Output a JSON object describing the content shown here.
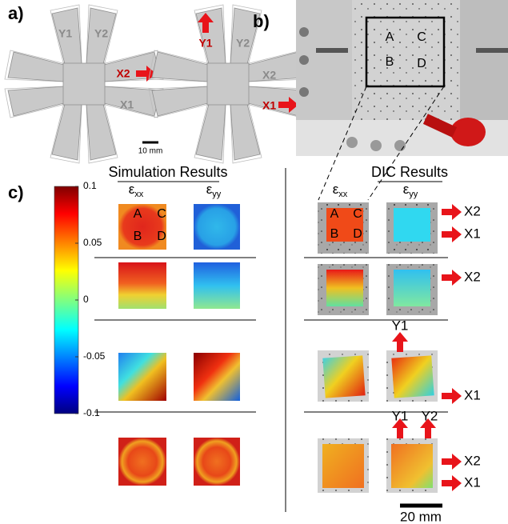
{
  "panel_a": {
    "label": "a)",
    "specimen_1": {
      "labels": [
        "Y1",
        "Y2",
        "X2",
        "X1"
      ]
    },
    "specimen_2": {
      "labels": [
        "Y1",
        "Y2",
        "X2",
        "X1"
      ]
    },
    "scale_bar": "10 mm"
  },
  "panel_b": {
    "label": "b)",
    "regions": [
      "A",
      "C",
      "B",
      "D"
    ]
  },
  "panel_c": {
    "label": "c)",
    "colorbar": {
      "lim": [
        -0.1,
        0.1
      ],
      "ticks": [
        0.1,
        0.05,
        0,
        -0.05,
        -0.1
      ]
    },
    "simulation": {
      "title": "Simulation Results",
      "columns": [
        {
          "symbol": "ε",
          "subscript": "xx"
        },
        {
          "symbol": "ε",
          "subscript": "yy"
        }
      ],
      "regions": [
        "A",
        "C",
        "B",
        "D"
      ]
    },
    "dic": {
      "title": "DIC Results",
      "columns": [
        {
          "symbol": "ε",
          "subscript": "xx"
        },
        {
          "symbol": "ε",
          "subscript": "yy"
        }
      ],
      "regions": [
        "A",
        "C",
        "B",
        "D"
      ],
      "load_labels": {
        "row_1": [
          "X2",
          "X1"
        ],
        "row_2": [
          "X2"
        ],
        "row_3": [
          "Y1",
          "X1"
        ],
        "row_4": [
          "Y1",
          "Y2",
          "X2",
          "X1"
        ]
      },
      "scale_bar": "20 mm"
    }
  }
}
